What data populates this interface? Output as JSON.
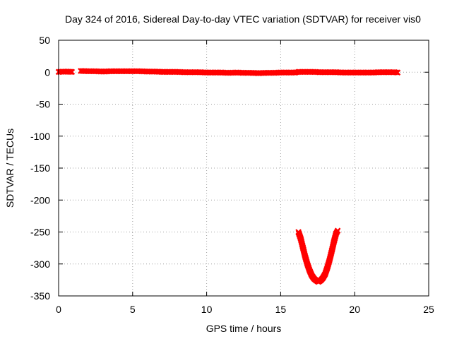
{
  "chart_data": {
    "type": "scatter",
    "title": "Day 324 of 2016, Sidereal Day-to-day VTEC variation (SDTVAR) for receiver vis0",
    "xlabel": "GPS time / hours",
    "ylabel": "SDTVAR / TECUs",
    "xlim": [
      0,
      25
    ],
    "ylim": [
      -350,
      50
    ],
    "xticks": [
      0,
      5,
      10,
      15,
      20,
      25
    ],
    "yticks": [
      50,
      0,
      -50,
      -100,
      -150,
      -200,
      -250,
      -300,
      -350
    ],
    "grid": true,
    "marker": "x",
    "color": "#ff0000",
    "series": [
      {
        "points": [
          [
            0.0,
            0.5
          ],
          [
            0.5,
            1.0
          ],
          [
            0.9,
            0.5
          ],
          [
            1.5,
            2.0
          ],
          [
            2.0,
            1.5
          ],
          [
            2.5,
            1.5
          ],
          [
            3.0,
            1.0
          ],
          [
            3.5,
            1.5
          ],
          [
            4.0,
            1.5
          ],
          [
            4.5,
            1.5
          ],
          [
            5.0,
            1.5
          ],
          [
            5.5,
            1.5
          ],
          [
            6.0,
            1.0
          ],
          [
            6.5,
            1.0
          ],
          [
            7.0,
            0.5
          ],
          [
            7.5,
            0.5
          ],
          [
            8.0,
            0.5
          ],
          [
            8.5,
            0.0
          ],
          [
            9.0,
            0.0
          ],
          [
            9.5,
            0.0
          ],
          [
            10.0,
            -0.5
          ],
          [
            10.5,
            -0.5
          ],
          [
            11.0,
            -0.5
          ],
          [
            11.5,
            -1.0
          ],
          [
            12.0,
            -0.5
          ],
          [
            12.5,
            -1.0
          ],
          [
            13.0,
            -1.0
          ],
          [
            13.5,
            -1.5
          ],
          [
            14.0,
            -1.0
          ],
          [
            14.5,
            -1.0
          ],
          [
            15.0,
            -0.5
          ],
          [
            15.5,
            -0.5
          ],
          [
            16.0,
            -0.5
          ],
          [
            16.2,
            0.5
          ],
          [
            16.7,
            0.5
          ],
          [
            17.2,
            0.5
          ],
          [
            17.7,
            0.0
          ],
          [
            18.2,
            0.0
          ],
          [
            18.7,
            0.0
          ],
          [
            19.2,
            -0.5
          ],
          [
            19.7,
            -0.5
          ],
          [
            20.2,
            -0.5
          ],
          [
            20.7,
            -0.5
          ],
          [
            21.2,
            -0.5
          ],
          [
            21.7,
            0.0
          ],
          [
            22.2,
            0.0
          ],
          [
            22.7,
            0.0
          ],
          [
            22.9,
            -0.5
          ],
          [
            16.2,
            -250
          ],
          [
            16.35,
            -260
          ],
          [
            16.5,
            -274
          ],
          [
            16.65,
            -288
          ],
          [
            16.8,
            -300
          ],
          [
            16.95,
            -310
          ],
          [
            17.1,
            -318
          ],
          [
            17.25,
            -323
          ],
          [
            17.4,
            -326
          ],
          [
            17.55,
            -328
          ],
          [
            17.7,
            -326
          ],
          [
            17.85,
            -322
          ],
          [
            18.0,
            -316
          ],
          [
            18.15,
            -306
          ],
          [
            18.3,
            -294
          ],
          [
            18.45,
            -280
          ],
          [
            18.6,
            -265
          ],
          [
            18.75,
            -252
          ],
          [
            18.85,
            -248
          ]
        ]
      }
    ]
  }
}
